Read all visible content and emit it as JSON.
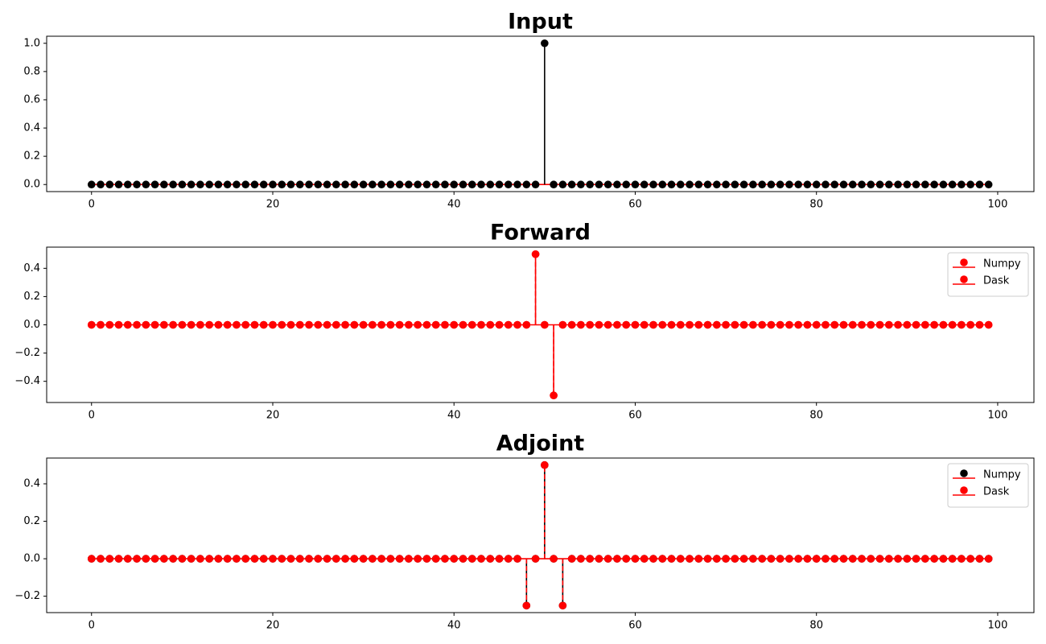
{
  "chart_data": [
    {
      "type": "stem",
      "title": "Input",
      "x": [
        0,
        1,
        2,
        3,
        4,
        5,
        6,
        7,
        8,
        9,
        10,
        11,
        12,
        13,
        14,
        15,
        16,
        17,
        18,
        19,
        20,
        21,
        22,
        23,
        24,
        25,
        26,
        27,
        28,
        29,
        30,
        31,
        32,
        33,
        34,
        35,
        36,
        37,
        38,
        39,
        40,
        41,
        42,
        43,
        44,
        45,
        46,
        47,
        48,
        49,
        50,
        51,
        52,
        53,
        54,
        55,
        56,
        57,
        58,
        59,
        60,
        61,
        62,
        63,
        64,
        65,
        66,
        67,
        68,
        69,
        70,
        71,
        72,
        73,
        74,
        75,
        76,
        77,
        78,
        79,
        80,
        81,
        82,
        83,
        84,
        85,
        86,
        87,
        88,
        89,
        90,
        91,
        92,
        93,
        94,
        95,
        96,
        97,
        98,
        99
      ],
      "values": [
        0,
        0,
        0,
        0,
        0,
        0,
        0,
        0,
        0,
        0,
        0,
        0,
        0,
        0,
        0,
        0,
        0,
        0,
        0,
        0,
        0,
        0,
        0,
        0,
        0,
        0,
        0,
        0,
        0,
        0,
        0,
        0,
        0,
        0,
        0,
        0,
        0,
        0,
        0,
        0,
        0,
        0,
        0,
        0,
        0,
        0,
        0,
        0,
        0,
        0,
        1,
        0,
        0,
        0,
        0,
        0,
        0,
        0,
        0,
        0,
        0,
        0,
        0,
        0,
        0,
        0,
        0,
        0,
        0,
        0,
        0,
        0,
        0,
        0,
        0,
        0,
        0,
        0,
        0,
        0,
        0,
        0,
        0,
        0,
        0,
        0,
        0,
        0,
        0,
        0,
        0,
        0,
        0,
        0,
        0,
        0,
        0,
        0,
        0,
        0
      ],
      "color": "#000000",
      "linestyle": "solid",
      "baseline_color": "#ff0000",
      "xlim": [
        -4.95,
        104
      ],
      "xticks": [
        0,
        20,
        40,
        60,
        80,
        100
      ],
      "ylim": [
        -0.05,
        1.05
      ],
      "yticks": [
        {
          "value": 0,
          "label": "0.0"
        },
        0.2,
        0.4,
        0.6,
        0.8,
        {
          "value": 1,
          "label": "1.0"
        }
      ]
    },
    {
      "type": "stem",
      "title": "Forward",
      "x": [
        0,
        1,
        2,
        3,
        4,
        5,
        6,
        7,
        8,
        9,
        10,
        11,
        12,
        13,
        14,
        15,
        16,
        17,
        18,
        19,
        20,
        21,
        22,
        23,
        24,
        25,
        26,
        27,
        28,
        29,
        30,
        31,
        32,
        33,
        34,
        35,
        36,
        37,
        38,
        39,
        40,
        41,
        42,
        43,
        44,
        45,
        46,
        47,
        48,
        49,
        50,
        51,
        52,
        53,
        54,
        55,
        56,
        57,
        58,
        59,
        60,
        61,
        62,
        63,
        64,
        65,
        66,
        67,
        68,
        69,
        70,
        71,
        72,
        73,
        74,
        75,
        76,
        77,
        78,
        79,
        80,
        81,
        82,
        83,
        84,
        85,
        86,
        87,
        88,
        89,
        90,
        91,
        92,
        93,
        94,
        95,
        96,
        97,
        98,
        99
      ],
      "series": [
        {
          "name": "Numpy",
          "color": "#ff0000",
          "linestyle": "solid",
          "values": [
            0,
            0,
            0,
            0,
            0,
            0,
            0,
            0,
            0,
            0,
            0,
            0,
            0,
            0,
            0,
            0,
            0,
            0,
            0,
            0,
            0,
            0,
            0,
            0,
            0,
            0,
            0,
            0,
            0,
            0,
            0,
            0,
            0,
            0,
            0,
            0,
            0,
            0,
            0,
            0,
            0,
            0,
            0,
            0,
            0,
            0,
            0,
            0,
            0,
            0.5,
            0,
            -0.5,
            0,
            0,
            0,
            0,
            0,
            0,
            0,
            0,
            0,
            0,
            0,
            0,
            0,
            0,
            0,
            0,
            0,
            0,
            0,
            0,
            0,
            0,
            0,
            0,
            0,
            0,
            0,
            0,
            0,
            0,
            0,
            0,
            0,
            0,
            0,
            0,
            0,
            0,
            0,
            0,
            0,
            0,
            0,
            0,
            0,
            0,
            0,
            0
          ]
        },
        {
          "name": "Dask",
          "color": "#ff0000",
          "linestyle": "dashed",
          "values": [
            0,
            0,
            0,
            0,
            0,
            0,
            0,
            0,
            0,
            0,
            0,
            0,
            0,
            0,
            0,
            0,
            0,
            0,
            0,
            0,
            0,
            0,
            0,
            0,
            0,
            0,
            0,
            0,
            0,
            0,
            0,
            0,
            0,
            0,
            0,
            0,
            0,
            0,
            0,
            0,
            0,
            0,
            0,
            0,
            0,
            0,
            0,
            0,
            0,
            0.5,
            0,
            -0.5,
            0,
            0,
            0,
            0,
            0,
            0,
            0,
            0,
            0,
            0,
            0,
            0,
            0,
            0,
            0,
            0,
            0,
            0,
            0,
            0,
            0,
            0,
            0,
            0,
            0,
            0,
            0,
            0,
            0,
            0,
            0,
            0,
            0,
            0,
            0,
            0,
            0,
            0,
            0,
            0,
            0,
            0,
            0,
            0,
            0,
            0,
            0,
            0
          ]
        }
      ],
      "baseline_color": "#ff0000",
      "legend": "upper right",
      "xlim": [
        -4.95,
        104
      ],
      "xticks": [
        0,
        20,
        40,
        60,
        80,
        100
      ],
      "ylim": [
        -0.55,
        0.55
      ],
      "yticks": [
        {
          "value": -0.4,
          "label": "−0.4"
        },
        {
          "value": -0.2,
          "label": "−0.2"
        },
        {
          "value": 0,
          "label": "0.0"
        },
        0.2,
        0.4
      ]
    },
    {
      "type": "stem",
      "title": "Adjoint",
      "x": [
        0,
        1,
        2,
        3,
        4,
        5,
        6,
        7,
        8,
        9,
        10,
        11,
        12,
        13,
        14,
        15,
        16,
        17,
        18,
        19,
        20,
        21,
        22,
        23,
        24,
        25,
        26,
        27,
        28,
        29,
        30,
        31,
        32,
        33,
        34,
        35,
        36,
        37,
        38,
        39,
        40,
        41,
        42,
        43,
        44,
        45,
        46,
        47,
        48,
        49,
        50,
        51,
        52,
        53,
        54,
        55,
        56,
        57,
        58,
        59,
        60,
        61,
        62,
        63,
        64,
        65,
        66,
        67,
        68,
        69,
        70,
        71,
        72,
        73,
        74,
        75,
        76,
        77,
        78,
        79,
        80,
        81,
        82,
        83,
        84,
        85,
        86,
        87,
        88,
        89,
        90,
        91,
        92,
        93,
        94,
        95,
        96,
        97,
        98,
        99
      ],
      "series": [
        {
          "name": "Numpy",
          "color": "#000000",
          "linestyle": "solid",
          "values": [
            0,
            0,
            0,
            0,
            0,
            0,
            0,
            0,
            0,
            0,
            0,
            0,
            0,
            0,
            0,
            0,
            0,
            0,
            0,
            0,
            0,
            0,
            0,
            0,
            0,
            0,
            0,
            0,
            0,
            0,
            0,
            0,
            0,
            0,
            0,
            0,
            0,
            0,
            0,
            0,
            0,
            0,
            0,
            0,
            0,
            0,
            0,
            0,
            -0.25,
            0,
            0.5,
            0,
            -0.25,
            0,
            0,
            0,
            0,
            0,
            0,
            0,
            0,
            0,
            0,
            0,
            0,
            0,
            0,
            0,
            0,
            0,
            0,
            0,
            0,
            0,
            0,
            0,
            0,
            0,
            0,
            0,
            0,
            0,
            0,
            0,
            0,
            0,
            0,
            0,
            0,
            0,
            0,
            0,
            0,
            0,
            0,
            0,
            0,
            0,
            0,
            0
          ]
        },
        {
          "name": "Dask",
          "color": "#ff0000",
          "linestyle": "dashed",
          "values": [
            0,
            0,
            0,
            0,
            0,
            0,
            0,
            0,
            0,
            0,
            0,
            0,
            0,
            0,
            0,
            0,
            0,
            0,
            0,
            0,
            0,
            0,
            0,
            0,
            0,
            0,
            0,
            0,
            0,
            0,
            0,
            0,
            0,
            0,
            0,
            0,
            0,
            0,
            0,
            0,
            0,
            0,
            0,
            0,
            0,
            0,
            0,
            0,
            -0.25,
            0,
            0.5,
            0,
            -0.25,
            0,
            0,
            0,
            0,
            0,
            0,
            0,
            0,
            0,
            0,
            0,
            0,
            0,
            0,
            0,
            0,
            0,
            0,
            0,
            0,
            0,
            0,
            0,
            0,
            0,
            0,
            0,
            0,
            0,
            0,
            0,
            0,
            0,
            0,
            0,
            0,
            0,
            0,
            0,
            0,
            0,
            0,
            0,
            0,
            0,
            0,
            0
          ]
        }
      ],
      "baseline_color": "#ff0000",
      "legend": "upper right",
      "xlim": [
        -4.95,
        104
      ],
      "xticks": [
        0,
        20,
        40,
        60,
        80,
        100
      ],
      "ylim": [
        -0.2875,
        0.5375
      ],
      "yticks": [
        {
          "value": -0.2,
          "label": "−0.2"
        },
        {
          "value": 0,
          "label": "0.0"
        },
        0.2,
        0.4
      ]
    }
  ]
}
